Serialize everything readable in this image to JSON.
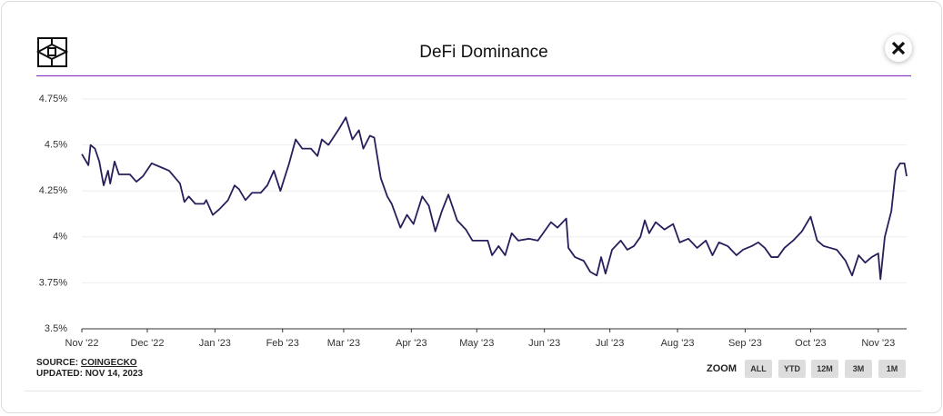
{
  "chart_data": {
    "type": "line",
    "title": "DeFi Dominance",
    "x": [
      0,
      3,
      4,
      6,
      8,
      10,
      12,
      13,
      15,
      17,
      22,
      25,
      28,
      32,
      36,
      40,
      45,
      47,
      49,
      52,
      56,
      57,
      60,
      63,
      67,
      70,
      72,
      75,
      78,
      82,
      85,
      88,
      91,
      95,
      98,
      101,
      105,
      108,
      110,
      113,
      118,
      121,
      124,
      127,
      129,
      132,
      134,
      137,
      140,
      142,
      146,
      149,
      152,
      156,
      159,
      162,
      165,
      168,
      172,
      176,
      179,
      182,
      186,
      188,
      191,
      194,
      197,
      200,
      205,
      209,
      212,
      215,
      218,
      222,
      223,
      226,
      230,
      233,
      236,
      238,
      240,
      243,
      247,
      250,
      253,
      256,
      258,
      260,
      263,
      267,
      271,
      274,
      278,
      282,
      286,
      289,
      292,
      296,
      300,
      303,
      307,
      310,
      313,
      316,
      319,
      322,
      326,
      330,
      334,
      337,
      340,
      343,
      346,
      350,
      353,
      356,
      359,
      362,
      365,
      366,
      368,
      371,
      373,
      375,
      377,
      378
    ],
    "series": [
      {
        "name": "DeFi Dominance",
        "color": "#2a1d5c",
        "values": [
          4.45,
          4.39,
          4.5,
          4.48,
          4.41,
          4.28,
          4.36,
          4.29,
          4.41,
          4.34,
          4.34,
          4.3,
          4.33,
          4.4,
          4.38,
          4.36,
          4.29,
          4.19,
          4.22,
          4.18,
          4.18,
          4.2,
          4.12,
          4.15,
          4.2,
          4.28,
          4.26,
          4.2,
          4.24,
          4.24,
          4.28,
          4.36,
          4.25,
          4.4,
          4.53,
          4.48,
          4.48,
          4.44,
          4.53,
          4.5,
          4.59,
          4.65,
          4.53,
          4.58,
          4.48,
          4.55,
          4.54,
          4.32,
          4.22,
          4.18,
          4.05,
          4.12,
          4.07,
          4.22,
          4.17,
          4.03,
          4.14,
          4.23,
          4.09,
          4.04,
          3.98,
          3.98,
          3.98,
          3.9,
          3.95,
          3.9,
          4.02,
          3.98,
          3.99,
          3.98,
          4.03,
          4.08,
          4.05,
          4.1,
          3.94,
          3.89,
          3.87,
          3.81,
          3.79,
          3.89,
          3.8,
          3.93,
          3.98,
          3.93,
          3.95,
          4.0,
          4.09,
          4.02,
          4.08,
          4.04,
          4.07,
          3.97,
          3.99,
          3.94,
          3.98,
          3.9,
          3.97,
          3.95,
          3.9,
          3.93,
          3.95,
          3.97,
          3.94,
          3.89,
          3.89,
          3.94,
          3.98,
          4.03,
          4.11,
          3.98,
          3.95,
          3.94,
          3.93,
          3.87,
          3.79,
          3.9,
          3.86,
          3.89,
          3.91,
          3.77,
          4.0,
          4.14,
          4.36,
          4.4,
          4.4,
          4.33
        ]
      }
    ],
    "xlim": [
      0,
      378
    ],
    "xticks": [
      {
        "value": 0,
        "label": "Nov '22"
      },
      {
        "value": 30,
        "label": "Dec '22"
      },
      {
        "value": 61,
        "label": "Jan '23"
      },
      {
        "value": 92,
        "label": "Feb '23"
      },
      {
        "value": 120,
        "label": "Mar '23"
      },
      {
        "value": 151,
        "label": "Apr '23"
      },
      {
        "value": 181,
        "label": "May '23"
      },
      {
        "value": 212,
        "label": "Jun '23"
      },
      {
        "value": 242,
        "label": "Jul '23"
      },
      {
        "value": 273,
        "label": "Aug '23"
      },
      {
        "value": 304,
        "label": "Sep '23"
      },
      {
        "value": 334,
        "label": "Oct '23"
      },
      {
        "value": 365,
        "label": "Nov '23"
      }
    ],
    "ylim": [
      3.5,
      4.75
    ],
    "yticks": [
      {
        "value": 3.5,
        "label": "3.5%"
      },
      {
        "value": 3.75,
        "label": "3.75%"
      },
      {
        "value": 4,
        "label": "4%"
      },
      {
        "value": 4.25,
        "label": "4.25%"
      },
      {
        "value": 4.5,
        "label": "4.5%"
      },
      {
        "value": 4.75,
        "label": "4.75%"
      }
    ],
    "grid": true
  },
  "footer": {
    "source_label": "SOURCE:",
    "source": "COINGECKO",
    "updated": "UPDATED: NOV 14, 2023"
  },
  "zoom": {
    "label": "ZOOM",
    "buttons": [
      "ALL",
      "YTD",
      "12M",
      "3M",
      "1M"
    ]
  }
}
